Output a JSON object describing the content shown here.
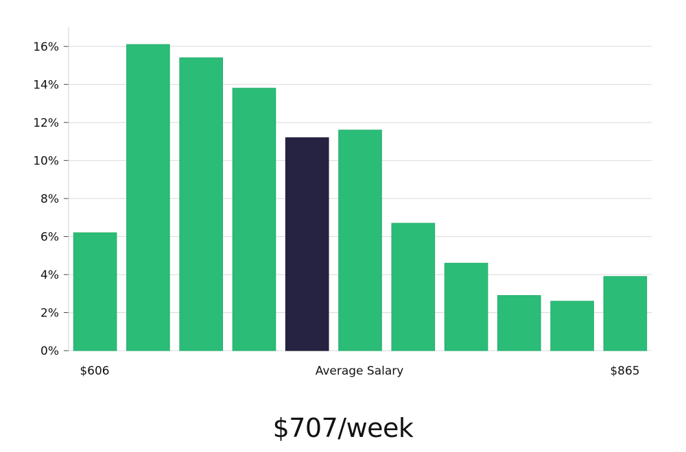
{
  "colors": {
    "bar": "#2bbd77",
    "highlight": "#262342",
    "grid": "#d9d9d9",
    "axis": "#cfcfcf"
  },
  "chart_data": {
    "type": "bar",
    "values": [
      6.2,
      16.1,
      15.4,
      13.8,
      11.2,
      11.6,
      6.7,
      4.6,
      2.9,
      2.6,
      3.9
    ],
    "highlight_index": 4,
    "ylim": [
      0,
      17
    ],
    "yticks": [
      0,
      2,
      4,
      6,
      8,
      10,
      12,
      14,
      16
    ],
    "ytick_labels": [
      "0%",
      "2%",
      "4%",
      "6%",
      "8%",
      "10%",
      "12%",
      "14%",
      "16%"
    ],
    "x_min_label": "$606",
    "x_max_label": "$865",
    "xlabel": "Average Salary",
    "grid": true
  },
  "headline": "$707/week"
}
